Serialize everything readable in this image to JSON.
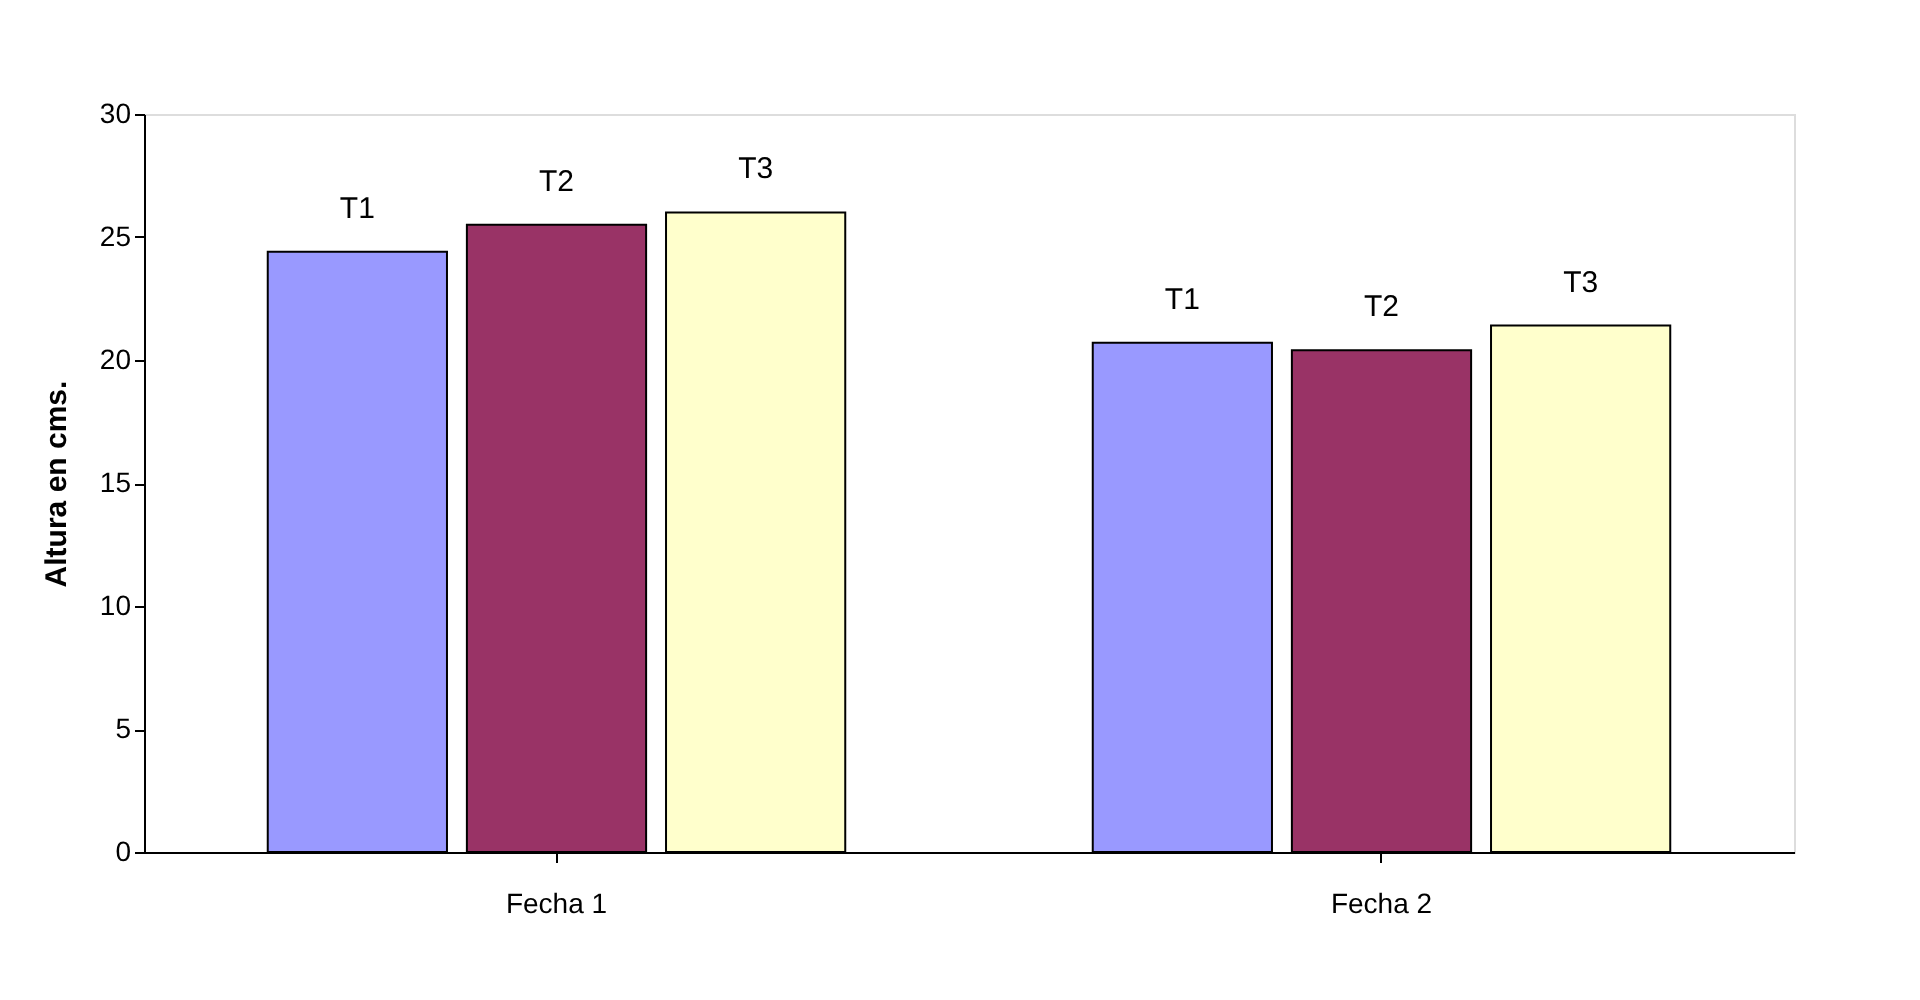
{
  "chart_data": {
    "type": "bar",
    "ylabel": "Altura en cms.",
    "categories": [
      "Fecha 1",
      "Fecha 2"
    ],
    "series": [
      {
        "name": "T1",
        "color": "#9999ff",
        "values": [
          24.4,
          20.7
        ]
      },
      {
        "name": "T2",
        "color": "#993366",
        "values": [
          25.5,
          20.4
        ]
      },
      {
        "name": "T3",
        "color": "#ffffcc",
        "values": [
          26.0,
          21.4
        ]
      }
    ],
    "ylim": [
      0,
      30
    ],
    "yticks": [
      0,
      5,
      10,
      15,
      20,
      25,
      30
    ],
    "grid": false,
    "legend": false
  }
}
